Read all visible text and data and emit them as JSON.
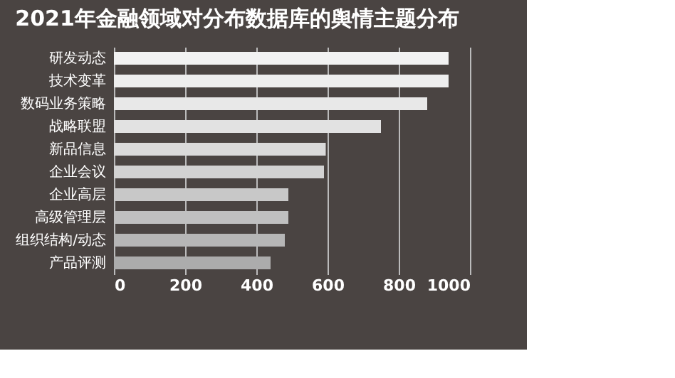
{
  "chart_data": {
    "type": "bar",
    "orientation": "horizontal",
    "title": "2021年金融领域对分布数据库的舆情主题分布",
    "categories": [
      "研发动态",
      "技术变革",
      "数码业务策略",
      "战略联盟",
      "新品信息",
      "企业会议",
      "企业高层",
      "高级管理层",
      "组织结构/动态",
      "产品评测"
    ],
    "values": [
      940,
      940,
      880,
      750,
      595,
      590,
      490,
      490,
      480,
      440
    ],
    "colors": [
      "#f2f2f2",
      "#eeeeee",
      "#e8e8e8",
      "#e2e2e2",
      "#dadada",
      "#d2d2d2",
      "#c8c8c8",
      "#c0c0c0",
      "#b6b6b6",
      "#acacac"
    ],
    "xlim": [
      0,
      1000
    ],
    "xticks": [
      0,
      200,
      400,
      600,
      800,
      1000
    ],
    "grid": "x"
  }
}
